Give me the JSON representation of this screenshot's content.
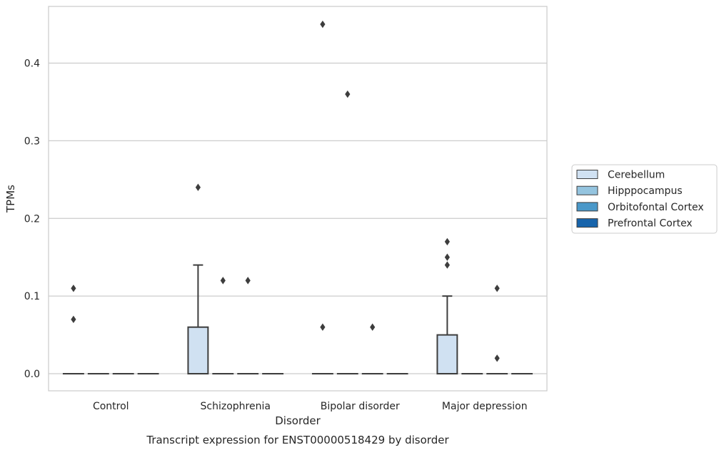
{
  "chart_data": {
    "type": "box",
    "title": "Transcript expression for ENST00000518429 by disorder",
    "xlabel": "Disorder",
    "ylabel": "TPMs",
    "categories": [
      "Control",
      "Schizophrenia",
      "Bipolar disorder",
      "Major depression"
    ],
    "ylim": [
      -0.022,
      0.473
    ],
    "yticks": [
      0.0,
      0.1,
      0.2,
      0.3,
      0.4
    ],
    "ytick_labels": [
      "0.0",
      "0.1",
      "0.2",
      "0.3",
      "0.4"
    ],
    "grid": "horizontal",
    "legend_position": "right",
    "series": [
      {
        "name": "Cerebellum",
        "color": "#d0e1f2",
        "boxes": [
          {
            "q1": 0,
            "median": 0,
            "q3": 0,
            "whisker_low": 0,
            "whisker_high": 0,
            "outliers": [
              0.07,
              0.11
            ]
          },
          {
            "q1": 0,
            "median": 0,
            "q3": 0.06,
            "whisker_low": 0,
            "whisker_high": 0.14,
            "outliers": [
              0.24
            ]
          },
          {
            "q1": 0,
            "median": 0,
            "q3": 0,
            "whisker_low": 0,
            "whisker_high": 0,
            "outliers": [
              0.06,
              0.45
            ]
          },
          {
            "q1": 0,
            "median": 0,
            "q3": 0.05,
            "whisker_low": 0,
            "whisker_high": 0.1,
            "outliers": [
              0.14,
              0.15,
              0.17
            ]
          }
        ]
      },
      {
        "name": "Hipppocampus",
        "color": "#94c4df",
        "boxes": [
          {
            "q1": 0,
            "median": 0,
            "q3": 0,
            "whisker_low": 0,
            "whisker_high": 0,
            "outliers": []
          },
          {
            "q1": 0,
            "median": 0,
            "q3": 0,
            "whisker_low": 0,
            "whisker_high": 0,
            "outliers": [
              0.12
            ]
          },
          {
            "q1": 0,
            "median": 0,
            "q3": 0,
            "whisker_low": 0,
            "whisker_high": 0,
            "outliers": [
              0.36
            ]
          },
          {
            "q1": 0,
            "median": 0,
            "q3": 0,
            "whisker_low": 0,
            "whisker_high": 0,
            "outliers": []
          }
        ]
      },
      {
        "name": "Orbitofontal Cortex",
        "color": "#4a98c9",
        "boxes": [
          {
            "q1": 0,
            "median": 0,
            "q3": 0,
            "whisker_low": 0,
            "whisker_high": 0,
            "outliers": []
          },
          {
            "q1": 0,
            "median": 0,
            "q3": 0,
            "whisker_low": 0,
            "whisker_high": 0,
            "outliers": [
              0.12
            ]
          },
          {
            "q1": 0,
            "median": 0,
            "q3": 0,
            "whisker_low": 0,
            "whisker_high": 0,
            "outliers": [
              0.06
            ]
          },
          {
            "q1": 0,
            "median": 0,
            "q3": 0,
            "whisker_low": 0,
            "whisker_high": 0,
            "outliers": [
              0.02,
              0.11
            ]
          }
        ]
      },
      {
        "name": "Prefrontal Cortex",
        "color": "#1764ab",
        "boxes": [
          {
            "q1": 0,
            "median": 0,
            "q3": 0,
            "whisker_low": 0,
            "whisker_high": 0,
            "outliers": []
          },
          {
            "q1": 0,
            "median": 0,
            "q3": 0,
            "whisker_low": 0,
            "whisker_high": 0,
            "outliers": []
          },
          {
            "q1": 0,
            "median": 0,
            "q3": 0,
            "whisker_low": 0,
            "whisker_high": 0,
            "outliers": []
          },
          {
            "q1": 0,
            "median": 0,
            "q3": 0,
            "whisker_low": 0,
            "whisker_high": 0,
            "outliers": []
          }
        ]
      }
    ]
  },
  "style": {
    "grid_color": "#cccccc",
    "axis_color": "#cccccc",
    "box_edge_color": "#3d3d3d",
    "outlier_color": "#3d3d3d",
    "text_color": "#262626"
  }
}
